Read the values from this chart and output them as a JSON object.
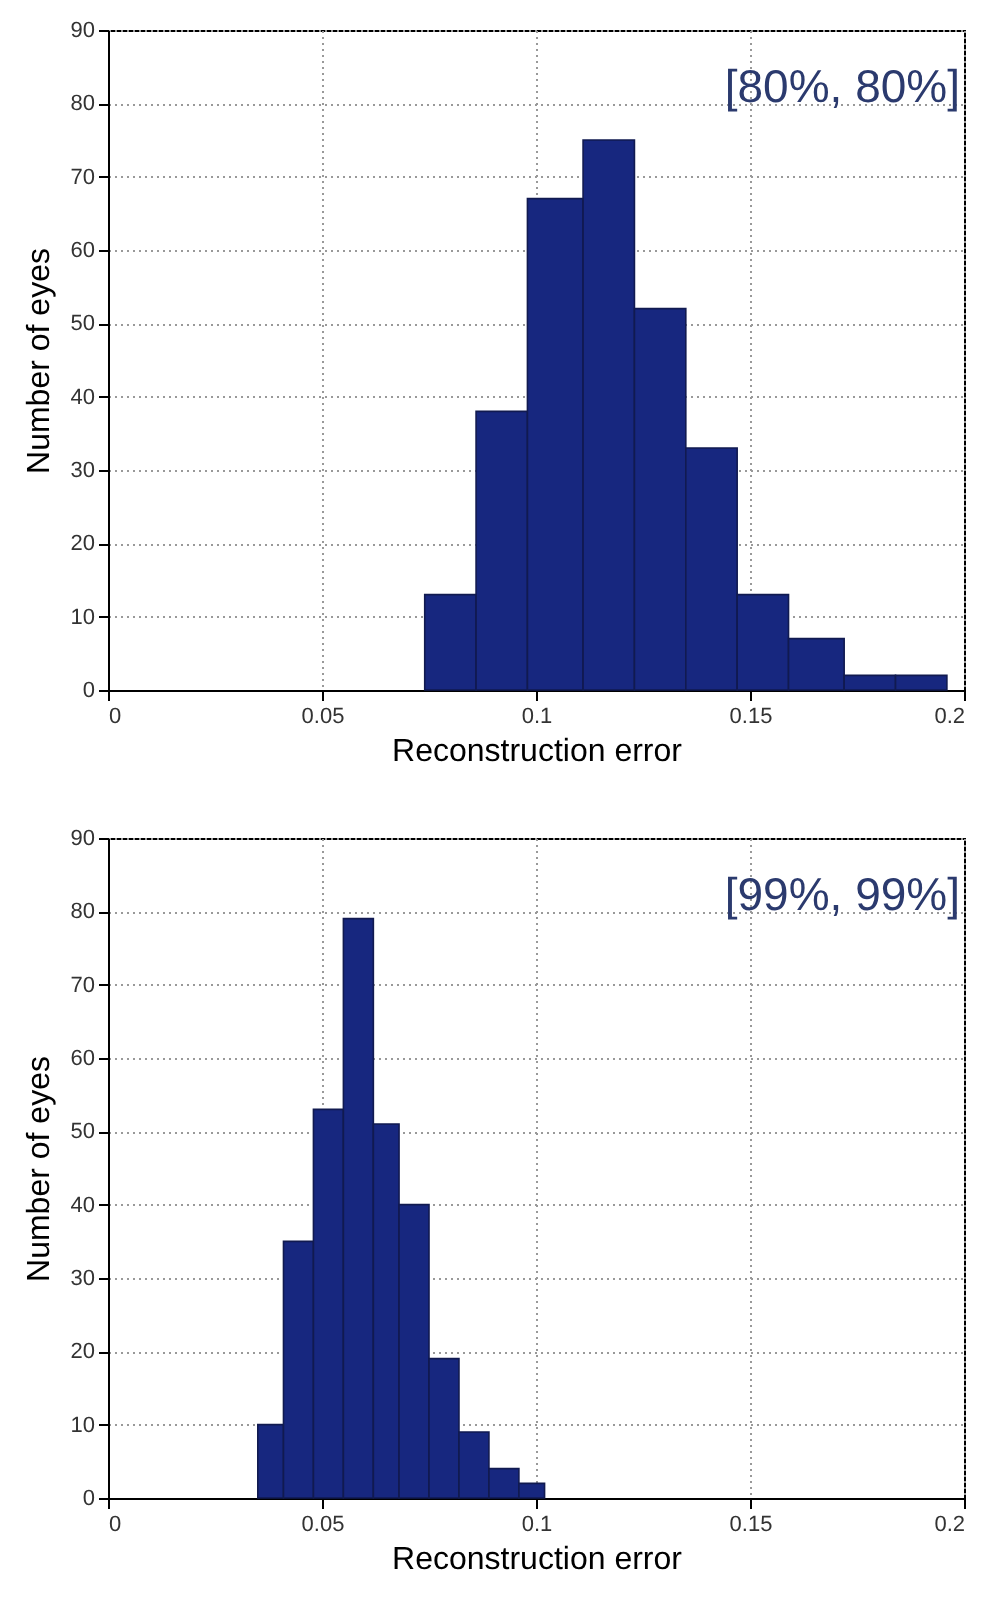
{
  "chart_data": [
    {
      "type": "histogram",
      "xlabel": "Reconstruction error",
      "ylabel": "Number of eyes",
      "annotations": [
        "[80%, 80%]"
      ],
      "bins": [
        0.074,
        0.086,
        0.098,
        0.111,
        0.123,
        0.135,
        0.147,
        0.159,
        0.172,
        0.184,
        0.196
      ],
      "values": [
        13,
        38,
        67,
        75,
        52,
        33,
        13,
        7,
        2,
        2
      ],
      "color": "#17277f",
      "xlim": [
        0,
        0.2
      ],
      "xticks": [
        0,
        0.05,
        0.1,
        0.15,
        0.2
      ],
      "ylim": [
        0,
        90
      ],
      "yticks": [
        0,
        10,
        20,
        30,
        40,
        50,
        60,
        70,
        80,
        90
      ],
      "grid": true
    },
    {
      "type": "histogram",
      "xlabel": "Reconstruction error",
      "ylabel": "Number of eyes",
      "annotations": [
        "[99%, 99%]"
      ],
      "bins": [
        0.035,
        0.041,
        0.048,
        0.055,
        0.062,
        0.068,
        0.075,
        0.082,
        0.089,
        0.096,
        0.102
      ],
      "values": [
        10,
        35,
        53,
        79,
        51,
        40,
        19,
        9,
        4,
        2
      ],
      "color": "#17277f",
      "xlim": [
        0,
        0.2
      ],
      "xticks": [
        0,
        0.05,
        0.1,
        0.15,
        0.2
      ],
      "ylim": [
        0,
        90
      ],
      "yticks": [
        0,
        10,
        20,
        30,
        40,
        50,
        60,
        70,
        80,
        90
      ],
      "grid": true
    }
  ]
}
